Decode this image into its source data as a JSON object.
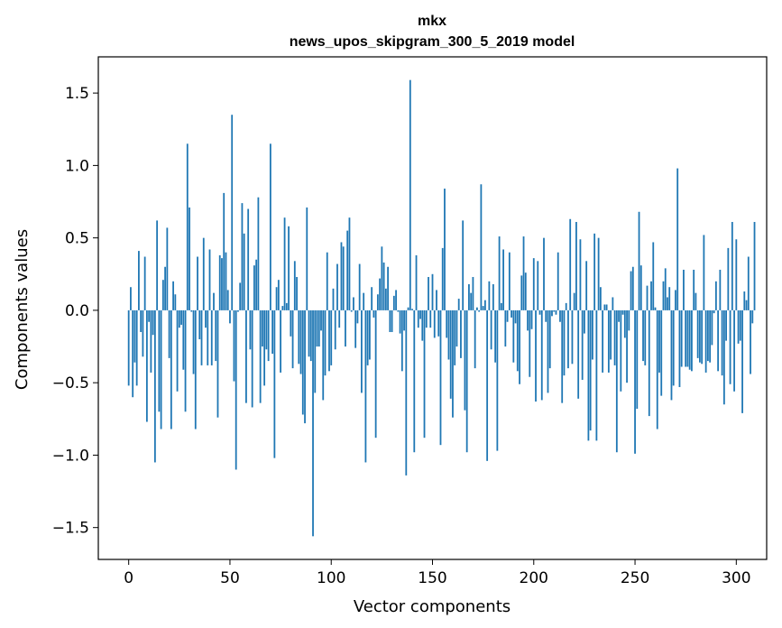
{
  "chart_data": {
    "type": "bar",
    "title_lines": [
      "mkx",
      "news_upos_skipgram_300_5_2019 model"
    ],
    "xlabel": "Vector components",
    "ylabel": "Components values",
    "xlim": [
      -15,
      315
    ],
    "ylim": [
      -1.72,
      1.75
    ],
    "xticks": [
      0,
      50,
      100,
      150,
      200,
      250,
      300
    ],
    "yticks": [
      -1.5,
      -1.0,
      -0.5,
      0.0,
      0.5,
      1.0,
      1.5
    ],
    "ytick_labels": [
      "−1.5",
      "−1.0",
      "−0.5",
      "0.0",
      "0.5",
      "1.0",
      "1.5"
    ],
    "grid": false,
    "bar_color": "#1f77b4",
    "series": [
      {
        "x_start": 0,
        "values": [
          -0.52,
          0.16,
          -0.6,
          -0.36,
          -0.52,
          0.41,
          -0.15,
          -0.32,
          0.37,
          -0.77,
          -0.08,
          -0.43,
          -0.17,
          -1.05,
          0.62,
          -0.7,
          -0.82,
          0.21,
          0.3,
          0.57,
          -0.33,
          -0.82,
          0.2,
          0.11,
          -0.56,
          -0.12,
          -0.1,
          -0.41,
          -0.7,
          1.15,
          0.71,
          -0.01,
          -0.44,
          -0.82,
          0.37,
          -0.2,
          -0.38,
          0.5,
          -0.12,
          -0.38,
          0.42,
          -0.38,
          0.12,
          -0.35,
          -0.74,
          0.38,
          0.36,
          0.81,
          0.4,
          0.14,
          -0.09,
          1.35,
          -0.49,
          -1.1,
          -0.01,
          0.19,
          0.74,
          0.53,
          -0.64,
          0.7,
          -0.27,
          -0.67,
          0.31,
          0.35,
          0.78,
          -0.64,
          -0.25,
          -0.52,
          -0.27,
          -0.35,
          1.15,
          -0.3,
          -1.02,
          0.16,
          0.21,
          -0.43,
          0.03,
          0.64,
          0.05,
          0.58,
          -0.18,
          -0.4,
          0.34,
          0.23,
          -0.37,
          -0.44,
          -0.72,
          -0.78,
          0.71,
          -0.32,
          -0.35,
          -1.56,
          -0.57,
          -0.25,
          -0.25,
          -0.14,
          -0.62,
          -0.45,
          0.4,
          -0.42,
          -0.38,
          0.15,
          -0.27,
          0.32,
          -0.12,
          0.47,
          0.44,
          -0.25,
          0.55,
          0.64,
          -0.01,
          0.09,
          -0.26,
          -0.09,
          0.32,
          -0.57,
          0.12,
          -1.05,
          -0.38,
          -0.34,
          0.16,
          -0.05,
          -0.88,
          0.11,
          0.22,
          0.44,
          0.33,
          0.15,
          0.3,
          -0.15,
          -0.15,
          0.1,
          0.14,
          -0.01,
          -0.16,
          -0.42,
          -0.14,
          -1.14,
          0.02,
          1.59,
          0.01,
          -0.98,
          0.38,
          -0.12,
          -0.06,
          -0.21,
          -0.88,
          -0.12,
          0.23,
          -0.12,
          0.25,
          -0.19,
          0.14,
          -0.18,
          -0.93,
          0.43,
          0.84,
          -0.19,
          -0.34,
          -0.61,
          -0.74,
          -0.38,
          -0.25,
          0.08,
          -0.33,
          0.62,
          -0.69,
          -0.98,
          0.18,
          0.12,
          0.23,
          -0.4,
          0.02,
          -0.01,
          0.87,
          0.03,
          0.07,
          -1.04,
          0.2,
          -0.27,
          0.18,
          -0.36,
          -0.97,
          0.51,
          0.05,
          0.42,
          -0.25,
          -0.08,
          0.4,
          -0.05,
          -0.36,
          -0.09,
          -0.42,
          -0.51,
          0.24,
          0.51,
          0.26,
          -0.14,
          -0.46,
          -0.13,
          0.36,
          -0.63,
          0.34,
          -0.03,
          -0.62,
          0.5,
          -0.08,
          -0.57,
          -0.4,
          -0.04,
          -0.01,
          -0.03,
          0.4,
          -0.08,
          -0.64,
          -0.45,
          0.05,
          -0.4,
          0.63,
          -0.37,
          0.12,
          0.61,
          -0.61,
          0.49,
          -0.48,
          -0.16,
          0.34,
          -0.9,
          -0.83,
          -0.34,
          0.53,
          -0.9,
          0.5,
          0.16,
          -0.43,
          0.04,
          0.04,
          -0.43,
          -0.34,
          0.09,
          -0.38,
          -0.98,
          -0.08,
          -0.56,
          -0.03,
          -0.19,
          -0.5,
          -0.14,
          0.27,
          0.3,
          -0.99,
          -0.68,
          0.68,
          0.31,
          -0.35,
          -0.38,
          0.17,
          -0.73,
          0.2,
          0.47,
          0.02,
          -0.82,
          -0.43,
          -0.59,
          0.2,
          0.29,
          0.09,
          0.16,
          -0.62,
          -0.52,
          0.14,
          0.98,
          -0.53,
          -0.39,
          0.28,
          -0.39,
          -0.39,
          -0.41,
          -0.42,
          0.28,
          0.12,
          -0.33,
          -0.36,
          -0.37,
          0.52,
          -0.43,
          -0.35,
          -0.36,
          -0.24,
          -0.02,
          0.2,
          -0.42,
          0.28,
          -0.45,
          -0.65,
          -0.21,
          0.43,
          -0.51,
          0.61,
          -0.56,
          0.49,
          -0.23,
          -0.21,
          -0.71,
          0.13,
          0.07,
          0.37,
          -0.44,
          -0.09,
          0.61
        ]
      }
    ]
  }
}
